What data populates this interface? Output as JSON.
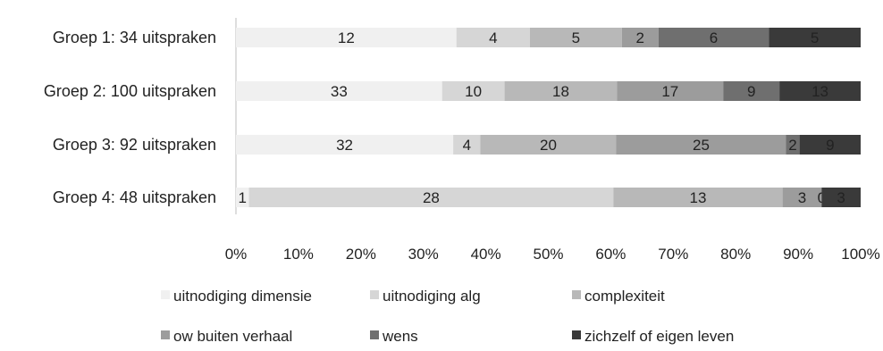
{
  "chart_data": {
    "type": "bar",
    "orientation": "horizontal",
    "stacked": "percent",
    "categories": [
      "Groep 1: 34 uitspraken",
      "Groep 2: 100 uitspraken",
      "Groep 3: 92 uitspraken",
      "Groep 4: 48 uitspraken"
    ],
    "series": [
      {
        "name": "uitnodiging dimensie",
        "color": "#f0f0f0",
        "values": [
          12,
          33,
          32,
          1
        ]
      },
      {
        "name": "uitnodiging alg",
        "color": "#d6d6d6",
        "values": [
          4,
          10,
          4,
          28
        ]
      },
      {
        "name": "complexiteit",
        "color": "#b8b8b8",
        "values": [
          5,
          18,
          20,
          13
        ]
      },
      {
        "name": "ow buiten verhaal",
        "color": "#9c9c9c",
        "values": [
          2,
          17,
          25,
          3
        ]
      },
      {
        "name": "wens",
        "color": "#6f6f6f",
        "values": [
          6,
          9,
          2,
          0
        ]
      },
      {
        "name": "zichzelf of eigen leven",
        "color": "#3a3a3a",
        "values": [
          5,
          13,
          9,
          3
        ]
      }
    ],
    "x_ticks": [
      "0%",
      "10%",
      "20%",
      "30%",
      "40%",
      "50%",
      "60%",
      "70%",
      "80%",
      "90%",
      "100%"
    ],
    "xlim": [
      0,
      100
    ],
    "grid": false,
    "legend_position": "bottom"
  }
}
